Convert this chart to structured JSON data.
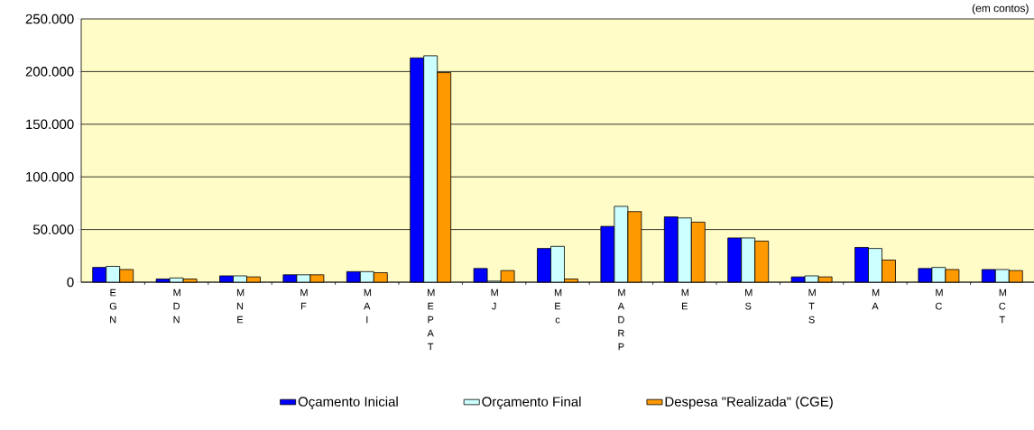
{
  "chart_data": {
    "type": "bar",
    "categories": [
      "E G N",
      "M D N",
      "M N E",
      "M F",
      "M A I",
      "M E P A T",
      "M J",
      "M E c",
      "M A D R P",
      "M E",
      "M S",
      "M T S",
      "M A",
      "M C",
      "M C T"
    ],
    "series": [
      {
        "name": "Oçamento Inicial",
        "color": "#0000ff",
        "values": [
          14000,
          3000,
          6000,
          7000,
          10000,
          213000,
          13000,
          32000,
          53000,
          62000,
          42000,
          5000,
          33000,
          13000,
          12000
        ]
      },
      {
        "name": "Orçamento Final",
        "color": "#ccffff",
        "values": [
          15000,
          4000,
          6000,
          7000,
          10000,
          215000,
          1000,
          34000,
          72000,
          61000,
          42000,
          6000,
          32000,
          14000,
          12000
        ]
      },
      {
        "name": "Despesa \"Realizada\" (CGE)",
        "color": "#ff9900",
        "values": [
          12000,
          3000,
          5000,
          7000,
          9000,
          199000,
          11000,
          3000,
          67000,
          57000,
          39000,
          5000,
          21000,
          12000,
          11000
        ]
      }
    ],
    "ylim": [
      0,
      250000
    ],
    "yticks": [
      0,
      {
        "value": 50000,
        "label": "50.000"
      },
      {
        "value": 100000,
        "label": "100.000"
      },
      {
        "value": 150000,
        "label": "150.000"
      },
      {
        "value": 200000,
        "label": "200.000"
      },
      {
        "value": 250000,
        "label": "250.000"
      }
    ],
    "grid": "y",
    "legend": "bottom",
    "annotations": [
      "(em contos)"
    ]
  }
}
